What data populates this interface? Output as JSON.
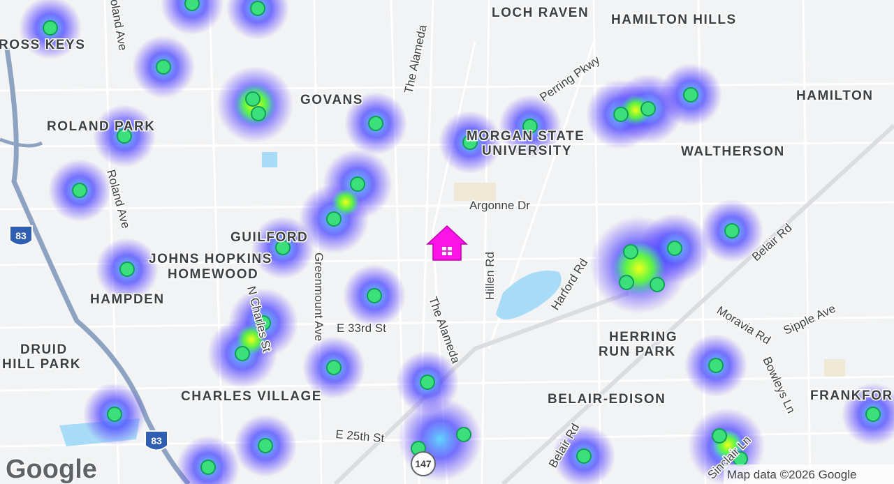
{
  "places": [
    "ROSS KEYS",
    "LOCH RAVEN",
    "HAMILTON HILLS",
    "GOVANS",
    "ROLAND PARK",
    "HAMILTON",
    "MORGAN STATE",
    "UNIVERSITY",
    "WALTHERSON",
    "GUILFORD",
    "JOHNS HOPKINS",
    "HOMEWOOD",
    "HAMPDEN",
    "DRUID",
    "HILL PARK",
    "HERRING",
    "RUN PARK",
    "CHARLES VILLAGE",
    "BELAIR-EDISON",
    "FRANKFOR"
  ],
  "streets": [
    "oland Ave",
    "The Alameda",
    "Perring Pkwy",
    "Argonne Dr",
    "Roland Ave",
    "Hillen Rd",
    "Harford Rd",
    "Belair Rd",
    "Greenmount Ave",
    "N Charles St",
    "E 33rd St",
    "The Alameda",
    "Moravia Rd",
    "Sipple Ave",
    "Bowleys Ln",
    "E 25th St",
    "Belair Rd",
    "Sinclair Ln"
  ],
  "shields": [
    "83",
    "83",
    "147"
  ],
  "logo": "Google",
  "attribution": "Map data ©2026 Google"
}
